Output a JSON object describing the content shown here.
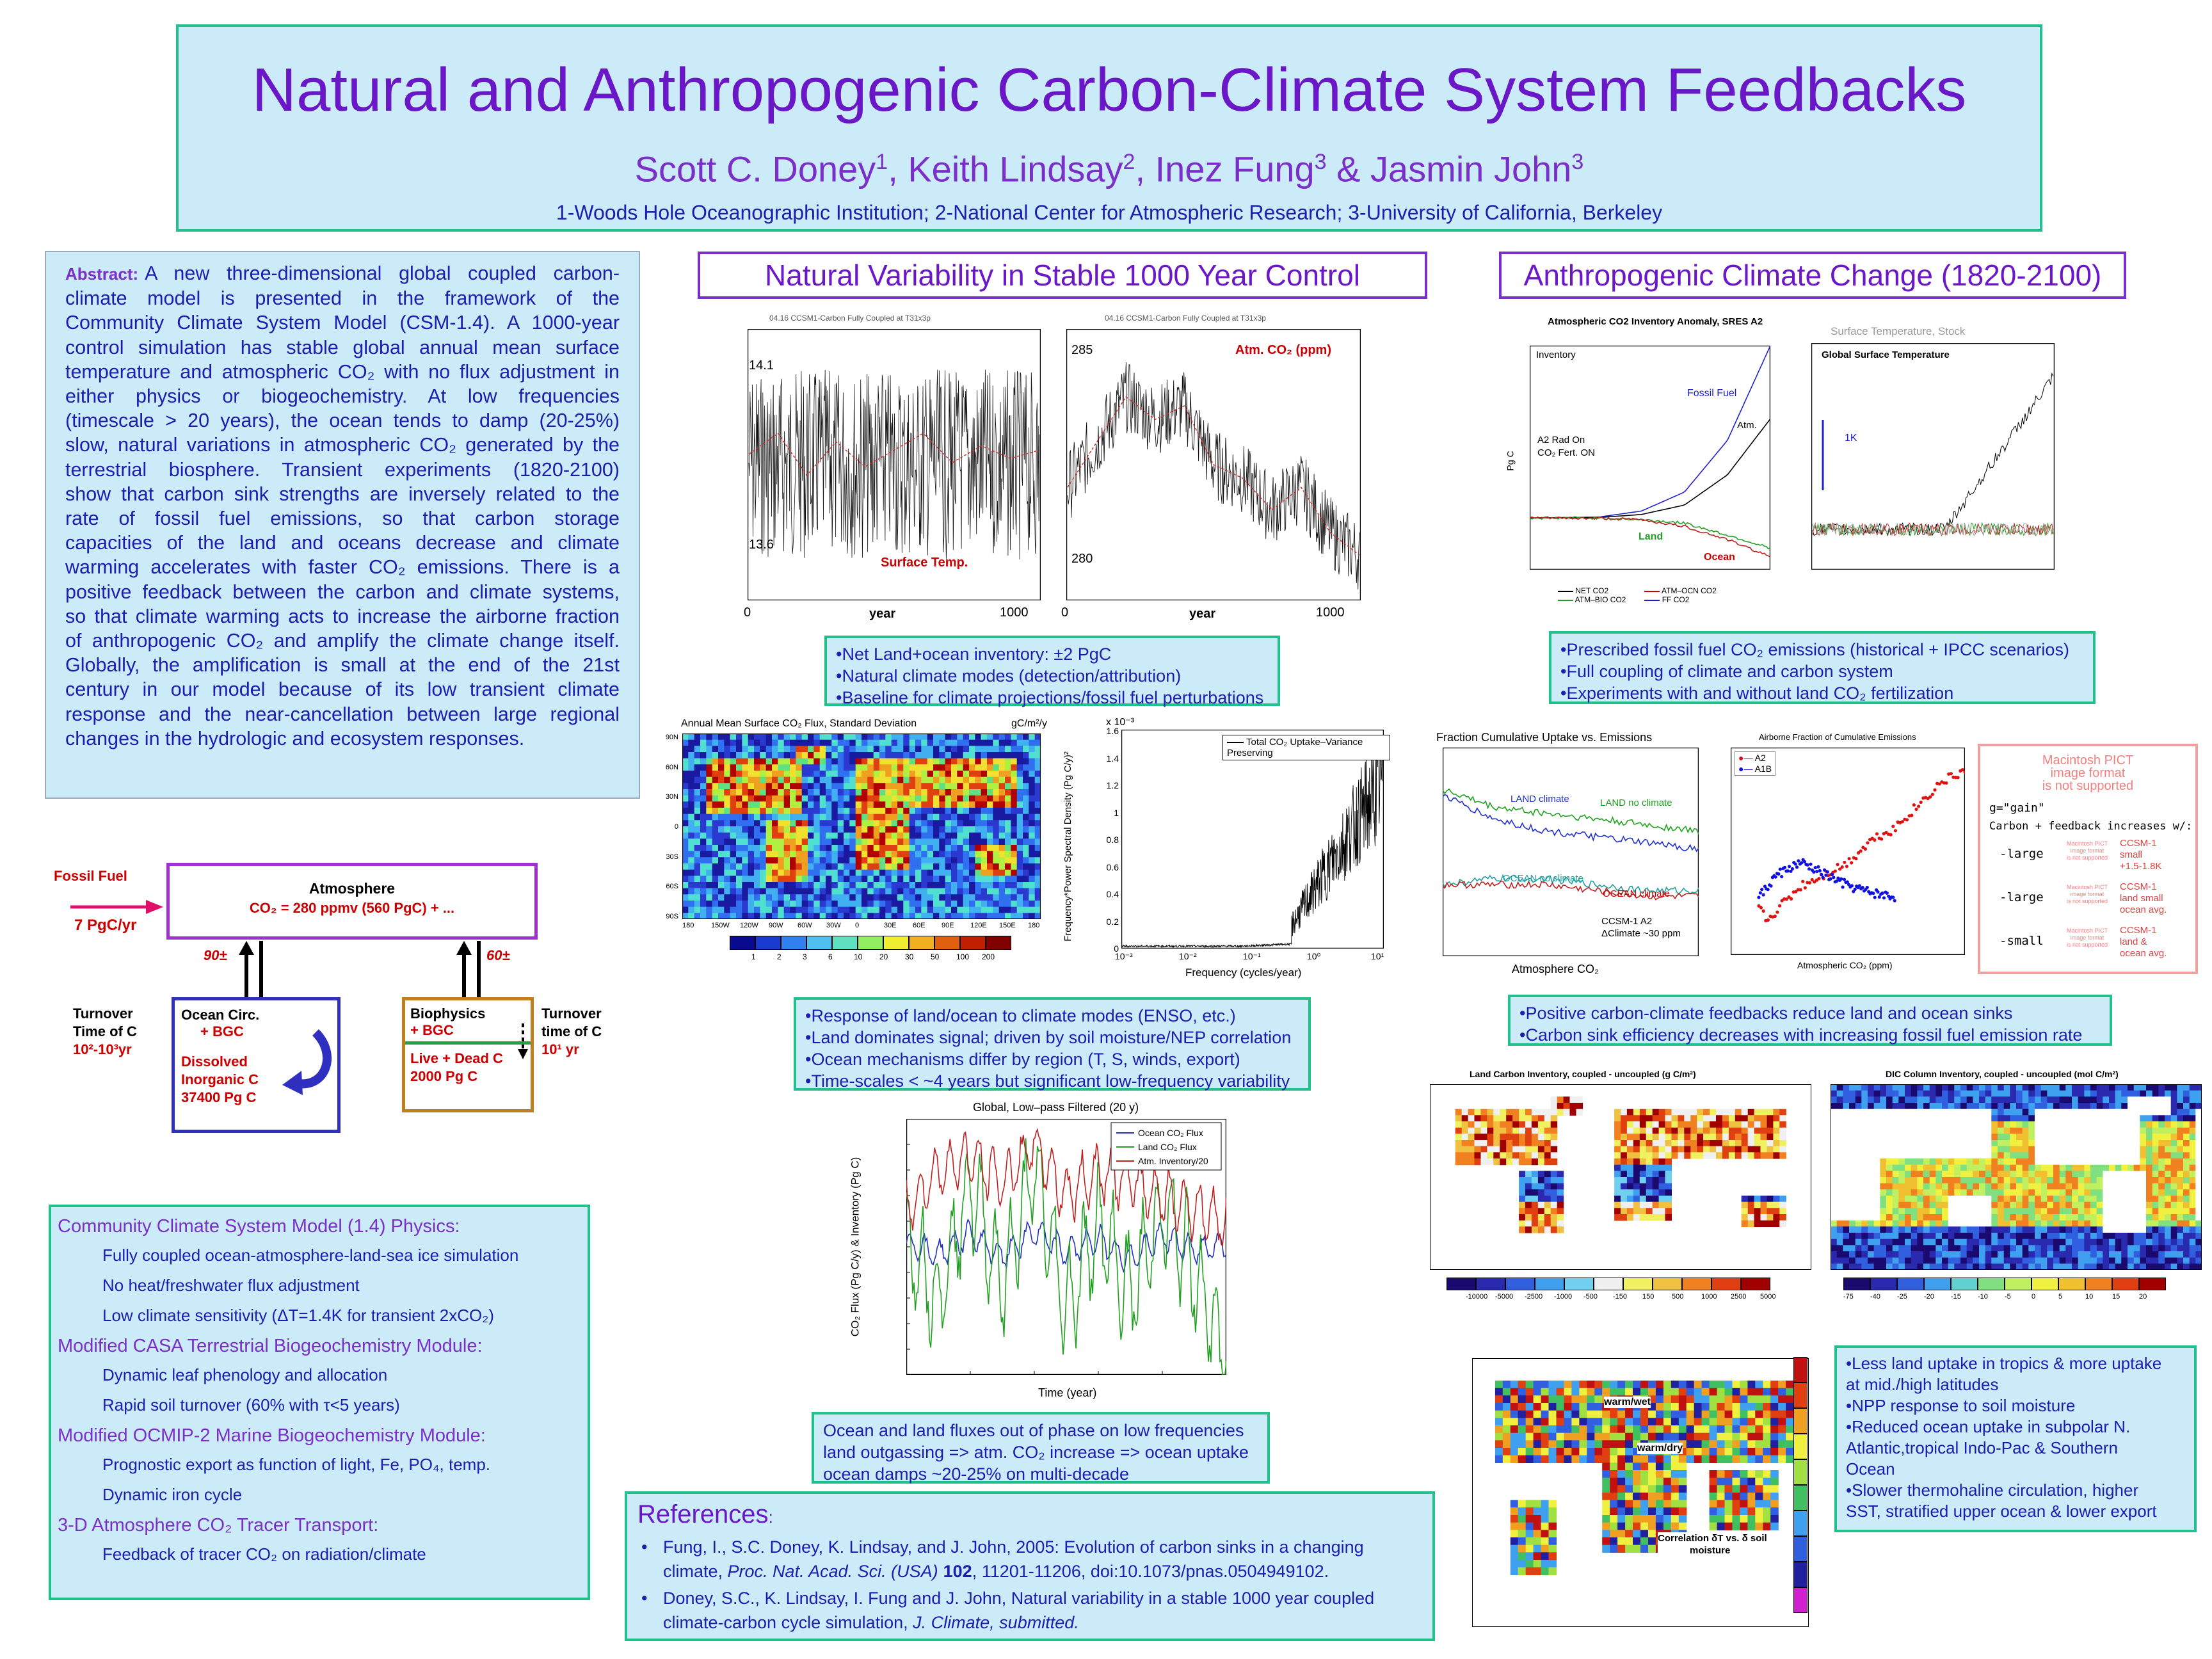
{
  "title": {
    "main": "Natural and Anthropogenic Carbon-Climate System Feedbacks",
    "authors": [
      {
        "name": "Scott C. Doney",
        "sup": "1"
      },
      {
        "name": "Keith Lindsay",
        "sup": "2"
      },
      {
        "name": "Inez Fung",
        "sup": "3"
      },
      {
        "name": "Jasmin John",
        "sup": "3"
      }
    ],
    "sep": ", ",
    "amp": " & ",
    "affiliations": "1-Woods Hole Oceanographic Institution; 2-National Center for Atmospheric Research; 3-University of California, Berkeley"
  },
  "abstract": {
    "label": "Abstract:",
    "lines": [
      "A new three-dimensional global coupled carbon-",
      "climate model is presented in the framework of the",
      "Community Climate System Model (CSM-1.4). A 1000-year",
      "control simulation has stable global annual mean surface",
      "temperature and atmospheric CO₂ with no flux adjustment in",
      "either physics or biogeochemistry. At low frequencies",
      "(timescale > 20 years), the ocean tends to damp (20-25%)",
      "slow, natural variations in atmospheric CO₂ generated by the",
      "terrestrial biosphere. Transient experiments (1820-2100)",
      "show that carbon sink strengths are inversely related to the",
      "rate of fossil fuel emissions, so that carbon storage",
      "capacities of the land and oceans decrease and climate",
      "warming accelerates with faster CO₂ emissions. There is a",
      "positive feedback between the carbon and climate systems,",
      "so that climate warming acts to increase the airborne fraction",
      "of anthropogenic CO₂ and amplify the climate change itself.",
      "Globally, the amplification is small at the end of the 21st",
      "century in our model because of its low transient climate",
      "response and the near-cancellation between large regional",
      "changes in the hydrologic and ecosystem responses."
    ]
  },
  "diagram": {
    "fossil_fuel": "Fossil Fuel",
    "fossil_rate": "7 PgC/yr",
    "atmosphere": "Atmosphere",
    "atm_co2": "CO₂ = 280 ppmv (560 PgC) + ...",
    "flux_ocean": "90±",
    "flux_land": "60±",
    "ocean_title": "Ocean Circ.",
    "ocean_bgc": "+ BGC",
    "ocean_pool": [
      "Dissolved",
      "Inorganic C",
      "37400 Pg C"
    ],
    "land_title": "Biophysics",
    "land_bgc": "+ BGC",
    "land_pool": [
      "Live + Dead C",
      "2000 Pg C"
    ],
    "turn_left": [
      "Turnover",
      "Time of C"
    ],
    "turn_left_val": "10²-10³yr",
    "turn_right": [
      "Turnover",
      "time of C"
    ],
    "turn_right_val": "10¹ yr"
  },
  "physics": {
    "sections": [
      {
        "head": "Community Climate System Model (1.4) Physics:",
        "items": [
          "Fully coupled ocean-atmosphere-land-sea ice simulation",
          "No heat/freshwater flux adjustment",
          "Low climate sensitivity (ΔT=1.4K for transient 2xCO₂)"
        ]
      },
      {
        "head": "Modified CASA Terrestrial Biogeochemistry Module:",
        "items": [
          "Dynamic leaf phenology and allocation",
          "Rapid soil turnover (60% with τ<5 years)"
        ]
      },
      {
        "head": "Modified OCMIP-2 Marine Biogeochemistry Module:",
        "items": [
          "Prognostic export as function of light, Fe, PO₄, temp.",
          "Dynamic iron cycle"
        ]
      },
      {
        "head": "3-D Atmosphere CO₂ Tracer Transport:",
        "items": [
          "Feedback of tracer CO₂ on radiation/climate"
        ]
      }
    ]
  },
  "natural": {
    "header": "Natural Variability in Stable 1000 Year Control",
    "plot_tiny_title": "04.16 CCSM1-Carbon Fully Coupled at T31x3p",
    "temp_label": "Surface Temp.",
    "temp_hi": "14.1",
    "temp_lo": "13.6",
    "co2_label": "Atm. CO₂ (ppm)",
    "co2_hi": "285",
    "co2_lo": "280",
    "x0": "0",
    "xlabel": "year",
    "x1": "1000",
    "bullets1": [
      "•Net Land+ocean inventory:  ±2 PgC",
      "•Natural climate modes (detection/attribution)",
      "•Baseline for climate projections/fossil fuel perturbations"
    ],
    "map_title": "Annual Mean Surface CO₂ Flux, Standard Deviation",
    "map_units": "gC/m²/y",
    "map_lats": [
      "90N",
      "60N",
      "30N",
      "0",
      "30S",
      "60S",
      "90S"
    ],
    "map_lons": [
      "180",
      "150W",
      "120W",
      "90W",
      "60W",
      "30W",
      "0",
      "30E",
      "60E",
      "90E",
      "120E",
      "150E",
      "180"
    ],
    "map_scale": [
      "1",
      "2",
      "3",
      "6",
      "10",
      "20",
      "30",
      "50",
      "100",
      "200"
    ],
    "spec_exp": "x 10⁻³",
    "spec_legend": "Total CO₂ Uptake–Variance Preserving",
    "spec_ylabel": "Frequency*Power Spectral Density (Pg C/y)²",
    "spec_yticks": [
      "1.6",
      "1.4",
      "1.2",
      "1",
      "0.8",
      "0.6",
      "0.4",
      "0.2",
      "0"
    ],
    "spec_xticks": [
      "10⁻³",
      "10⁻²",
      "10⁻¹",
      "10⁰",
      "10¹"
    ],
    "spec_xlabel": "Frequency (cycles/year)",
    "bullets2": [
      "•Response of land/ocean to climate modes (ENSO, etc.)",
      "•Land dominates signal; driven by soil moisture/NEP correlation",
      "•Ocean mechanisms differ by region (T, S, winds, export)",
      "•Time-scales < ~4 years but significant low-frequency variability"
    ],
    "flux_title": "Global, Low–pass Filtered (20 y)",
    "flux_legend": [
      "Ocean CO₂ Flux",
      "Land CO₂ Flux",
      "Atm. Inventory/20"
    ],
    "flux_ylabel": "CO₂ Flux (Pg C/y) & Inventory (Pg C)",
    "flux_xlabel": "Time (year)",
    "bullets3": [
      "Ocean and land fluxes out of phase on low frequencies",
      "land outgassing => atm. CO₂ increase => ocean uptake",
      "ocean damps ~20-25% on multi-decade"
    ]
  },
  "anthro": {
    "header": "Anthropogenic Climate Change (1820-2100)",
    "inv_title": "Atmospheric CO2 Inventory Anomaly, SRES A2",
    "inv_sub": "Inventory",
    "inv_ylabel": "Pg C",
    "inv_note": [
      "A2 Rad On",
      "CO₂ Fert. ON"
    ],
    "inv_fossil": "Fossil Fuel",
    "inv_atm": "Atm.",
    "inv_land": "Land",
    "inv_ocean": "Ocean",
    "inv_legend": [
      "NET CO2",
      "ATM–OCN CO2",
      "ATM–BIO CO2",
      "FF CO2"
    ],
    "temp_title": "Global Surface Temperature",
    "temp_faded": "Surface Temperature, Stock",
    "temp_1k": "1K",
    "bullets1": [
      "•Prescribed fossil fuel CO₂ emissions (historical + IPCC scenarios)",
      "•Full coupling of climate and carbon system",
      "•Experiments with and without land CO₂ fertilization"
    ],
    "frac_title": "Fraction Cumulative Uptake vs. Emissions",
    "frac_land_climate": "LAND climate",
    "frac_land_noclimate": "LAND no climate",
    "frac_ocean_noclimate": "OCEAN no climate",
    "frac_ocean_climate": "OCEAN climate",
    "frac_note": [
      "CCSM-1 A2",
      "ΔClimate ~30 ppm"
    ],
    "frac_xlabel": "Atmosphere CO₂",
    "af_title": "Airborne Fraction of Cumulative Emissions",
    "af_legend": [
      "A2",
      "A1B"
    ],
    "af_xlabel": "Atmospheric CO₂ (ppm)",
    "pict_warn": [
      "Macintosh PICT",
      "image format",
      "is not supported"
    ],
    "g_gain": "g=\"gain\"",
    "feedback": "Carbon + feedback increases w/:",
    "rows": [
      {
        "tag": "-large",
        "desc": [
          "CCSM-1",
          "small",
          "+1.5-1.8K"
        ]
      },
      {
        "tag": "-large",
        "desc": [
          "CCSM-1",
          "land small",
          "ocean avg."
        ]
      },
      {
        "tag": "-small",
        "desc": [
          "CCSM-1",
          "land &",
          "ocean avg."
        ]
      }
    ],
    "bullets2": [
      "•Positive carbon-climate feedbacks reduce land and ocean sinks",
      "•Carbon sink efficiency decreases with increasing fossil fuel emission rate"
    ],
    "land_map_title": "Land Carbon Inventory, coupled - uncoupled (g C/m²)",
    "dic_map_title": "DIC Column Inventory, coupled - uncoupled (mol C/m²)",
    "land_scale": [
      "-10000",
      "-5000",
      "-2500",
      "-1000",
      "-500",
      "-150",
      "150",
      "500",
      "1000",
      "2500",
      "5000"
    ],
    "dic_scale": [
      "-75",
      "-40",
      "-25",
      "-20",
      "-15",
      "-10",
      "-5",
      "0",
      "5",
      "10",
      "15",
      "20"
    ],
    "corr_warmwet": "warm/wet",
    "corr_warmdry": "warm/dry",
    "corr_label": [
      "Correlation δT vs. δ soil",
      "moisture"
    ],
    "bullets3": [
      "•Less land uptake in tropics & more uptake",
      "at mid./high latitudes",
      "•NPP response to soil moisture",
      "•Reduced ocean uptake in subpolar N.",
      "Atlantic,tropical Indo-Pac & Southern",
      "Ocean",
      "•Slower thermohaline circulation, higher",
      "SST, stratified upper ocean & lower export"
    ]
  },
  "references": {
    "head": "References",
    "colon": ":",
    "ref1": {
      "a": "Fung, I., S.C. Doney, K. Lindsay, and J. John, 2005: Evolution of carbon sinks in a changing",
      "b_pre": "climate, ",
      "journal": "Proc. Nat. Acad. Sci. (USA)",
      "vol": "102",
      "b_post": ", 11201-11206, doi:10.1073/pnas.0504949102."
    },
    "ref2": {
      "a": "Doney, S.C., K. Lindsay, I. Fung and J. John, Natural variability in a stable 1000 year coupled",
      "b_pre": "climate-carbon cycle simulation, ",
      "journal": "J. Climate, submitted."
    }
  },
  "chart_data": [
    {
      "type": "line",
      "title": "",
      "xlabel": "year",
      "ylabel": "",
      "xlim": [
        0,
        1000
      ],
      "ylim": [
        13.5,
        14.15
      ],
      "series": [
        {
          "name": "Surface Temp.",
          "x": [
            0,
            100,
            200,
            300,
            400,
            500,
            600,
            700,
            800,
            900,
            1000
          ],
          "y": [
            13.85,
            13.9,
            13.8,
            13.88,
            13.82,
            13.86,
            13.9,
            13.83,
            13.87,
            13.84,
            13.86
          ]
        }
      ]
    },
    {
      "type": "line",
      "title": "",
      "xlabel": "year",
      "ylabel": "",
      "xlim": [
        0,
        1000
      ],
      "ylim": [
        279.5,
        285.5
      ],
      "series": [
        {
          "name": "Atm. CO₂ (ppm)",
          "x": [
            0,
            100,
            200,
            300,
            400,
            500,
            600,
            700,
            800,
            900,
            1000
          ],
          "y": [
            282.0,
            283.0,
            284.0,
            283.5,
            283.8,
            282.5,
            282.2,
            281.5,
            282.0,
            281.0,
            280.5
          ]
        }
      ]
    },
    {
      "type": "line",
      "title": "Global, Low–pass Filtered (20 y)",
      "xlabel": "Time (year)",
      "ylabel": "CO₂ Flux (Pg C/y) & Inventory (Pg C)",
      "xlim": [
        0,
        1000
      ],
      "ylim": [
        -0.5,
        0.5
      ],
      "series": [
        {
          "name": "Ocean CO₂ Flux",
          "x": [
            0,
            100,
            200,
            300,
            400,
            500,
            600,
            700,
            800,
            900,
            1000
          ],
          "y": [
            0.02,
            -0.03,
            0.05,
            -0.04,
            0.06,
            -0.02,
            0.03,
            -0.05,
            0.04,
            -0.01,
            0.0
          ]
        },
        {
          "name": "Land CO₂ Flux",
          "x": [
            0,
            100,
            200,
            300,
            400,
            500,
            600,
            700,
            800,
            900,
            1000
          ],
          "y": [
            0.05,
            -0.2,
            0.25,
            -0.15,
            0.3,
            -0.25,
            0.1,
            -0.2,
            0.15,
            -0.1,
            -0.45
          ]
        },
        {
          "name": "Atm. Inventory/20",
          "x": [
            0,
            100,
            200,
            300,
            400,
            500,
            600,
            700,
            800,
            900,
            1000
          ],
          "y": [
            0.15,
            0.3,
            0.35,
            0.25,
            0.4,
            0.2,
            0.3,
            0.25,
            0.2,
            0.15,
            0.1
          ]
        }
      ]
    },
    {
      "type": "line",
      "title": "Atmospheric CO2 Inventory Anomaly, SRES A2",
      "xlabel": "",
      "ylabel": "Pg C",
      "xlim": [
        1820,
        2100
      ],
      "ylim": [
        -600,
        2000
      ],
      "series": [
        {
          "name": "FF CO2",
          "x": [
            1820,
            1900,
            1950,
            2000,
            2050,
            2100
          ],
          "y": [
            0,
            10,
            80,
            300,
            900,
            2000
          ]
        },
        {
          "name": "NET CO2",
          "x": [
            1820,
            1900,
            1950,
            2000,
            2050,
            2100
          ],
          "y": [
            0,
            5,
            40,
            150,
            500,
            1150
          ]
        },
        {
          "name": "ATM–BIO CO2",
          "x": [
            1820,
            1900,
            1950,
            2000,
            2050,
            2100
          ],
          "y": [
            0,
            0,
            -20,
            -60,
            -200,
            -350
          ]
        },
        {
          "name": "ATM–OCN CO2",
          "x": [
            1820,
            1900,
            1950,
            2000,
            2050,
            2100
          ],
          "y": [
            0,
            -5,
            -20,
            -100,
            -250,
            -450
          ]
        }
      ]
    },
    {
      "type": "line",
      "title": "Airborne Fraction of Cumulative Emissions",
      "xlabel": "Atmospheric CO₂ (ppm)",
      "ylabel": "",
      "xlim": [
        300,
        800
      ],
      "ylim": [
        0.46,
        0.55
      ],
      "series": [
        {
          "name": "A2",
          "x": [
            360,
            380,
            400,
            450,
            500,
            550,
            600,
            650,
            700,
            750,
            800
          ],
          "y": [
            0.48,
            0.475,
            0.48,
            0.49,
            0.495,
            0.5,
            0.51,
            0.515,
            0.525,
            0.535,
            0.54
          ]
        },
        {
          "name": "A1B",
          "x": [
            360,
            380,
            400,
            450,
            500,
            550,
            600,
            650
          ],
          "y": [
            0.485,
            0.49,
            0.495,
            0.5,
            0.495,
            0.49,
            0.487,
            0.485
          ]
        }
      ]
    },
    {
      "type": "line",
      "title": "Fraction Cumulative Uptake vs. Emissions",
      "xlabel": "Atmosphere CO₂",
      "ylabel": "",
      "xlim": [
        300,
        800
      ],
      "ylim": [
        0.1,
        0.45
      ],
      "series": [
        {
          "name": "LAND no climate",
          "x": [
            300,
            400,
            500,
            600,
            700,
            800
          ],
          "y": [
            0.38,
            0.35,
            0.34,
            0.33,
            0.32,
            0.31
          ]
        },
        {
          "name": "LAND climate",
          "x": [
            300,
            400,
            500,
            600,
            700,
            800
          ],
          "y": [
            0.37,
            0.33,
            0.31,
            0.3,
            0.29,
            0.28
          ]
        },
        {
          "name": "OCEAN no climate",
          "x": [
            300,
            400,
            500,
            600,
            700,
            800
          ],
          "y": [
            0.22,
            0.23,
            0.23,
            0.22,
            0.21,
            0.21
          ]
        },
        {
          "name": "OCEAN climate",
          "x": [
            300,
            400,
            500,
            600,
            700,
            800
          ],
          "y": [
            0.22,
            0.22,
            0.22,
            0.21,
            0.2,
            0.2
          ]
        }
      ]
    }
  ]
}
